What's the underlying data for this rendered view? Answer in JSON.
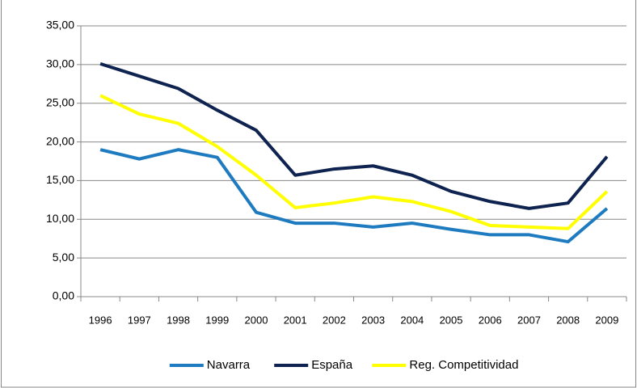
{
  "chart_data": {
    "type": "line",
    "categories": [
      "1996",
      "1997",
      "1998",
      "1999",
      "2000",
      "2001",
      "2002",
      "2003",
      "2004",
      "2005",
      "2006",
      "2007",
      "2008",
      "2009"
    ],
    "series": [
      {
        "name": "Navarra",
        "color": "#1f7bc0",
        "values": [
          19,
          17.8,
          19,
          18,
          10.9,
          9.5,
          9.5,
          9,
          9.5,
          8.7,
          8,
          8,
          7.1,
          11.4
        ]
      },
      {
        "name": "España",
        "color": "#0f2350",
        "values": [
          30.1,
          28.5,
          26.9,
          24.1,
          21.5,
          15.7,
          16.5,
          16.9,
          15.7,
          13.6,
          12.3,
          11.4,
          12.1,
          18.1
        ]
      },
      {
        "name": "Reg. Competitividad",
        "color": "#ffff00",
        "values": [
          26,
          23.6,
          22.4,
          19.4,
          15.7,
          11.5,
          12.1,
          12.9,
          12.3,
          11,
          9.2,
          9,
          8.8,
          13.6
        ]
      }
    ],
    "ylim": [
      0,
      35
    ],
    "yticks": [
      {
        "value": 0,
        "label": "0,00"
      },
      {
        "value": 5,
        "label": "5,00"
      },
      {
        "value": 10,
        "label": "10,00"
      },
      {
        "value": 15,
        "label": "15,00"
      },
      {
        "value": 20,
        "label": "20,00"
      },
      {
        "value": 25,
        "label": "25,00"
      },
      {
        "value": 30,
        "label": "30,00"
      },
      {
        "value": 35,
        "label": "35,00"
      }
    ],
    "grid": true,
    "legend": "bottom"
  }
}
